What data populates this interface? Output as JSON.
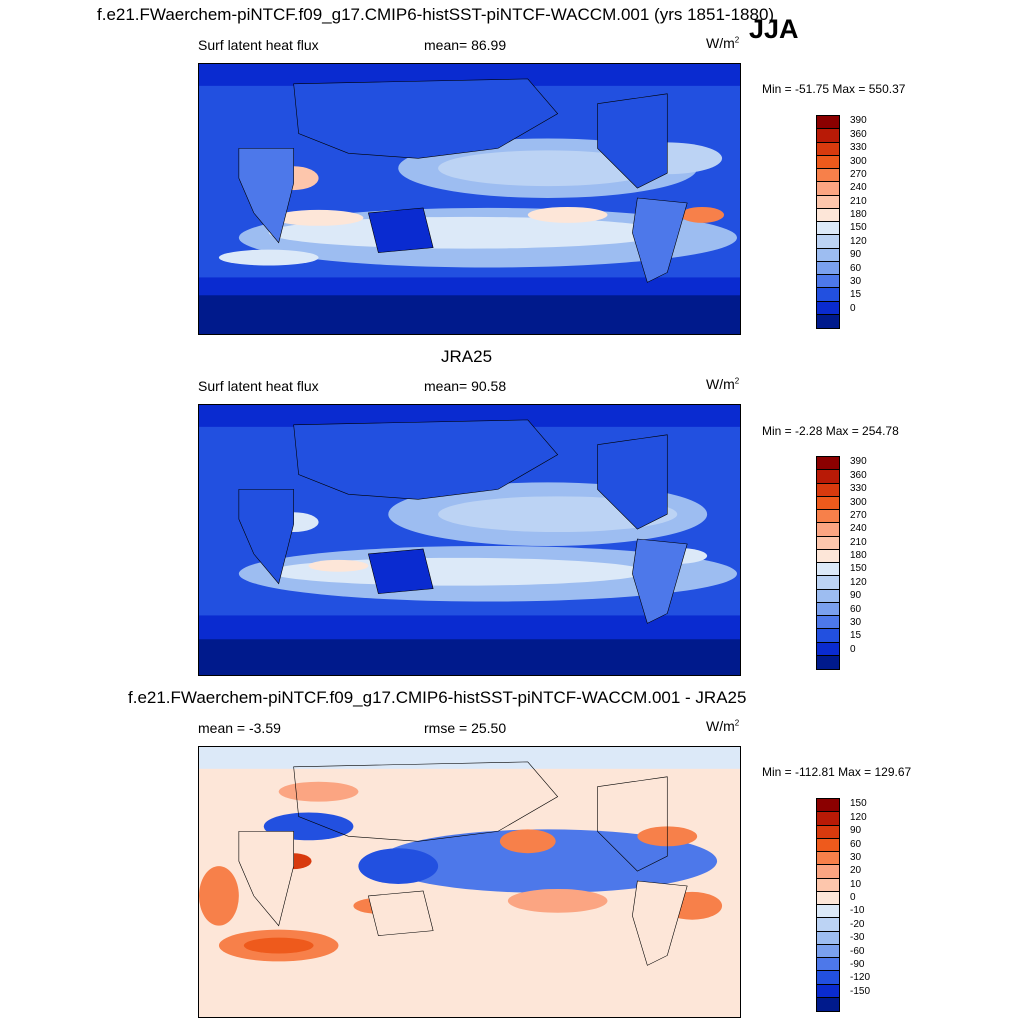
{
  "season": "JJA",
  "panels": [
    {
      "title": "f.e21.FWaerchem-piNTCF.f09_g17.CMIP6-histSST-piNTCF-WACCM.001 (yrs 1851-1880)",
      "left_label": "Surf latent heat flux",
      "center_label": "mean=  86.99",
      "units_base": "W/m",
      "units_exp": "2",
      "minmax": "Min = -51.75 Max = 550.37",
      "levels": [
        "390",
        "360",
        "330",
        "300",
        "270",
        "240",
        "210",
        "180",
        "150",
        "120",
        "90",
        "60",
        "30",
        "15",
        "0"
      ],
      "colors": [
        "#8b0000",
        "#b81a06",
        "#d83a0e",
        "#ee5a1c",
        "#f7804a",
        "#fba582",
        "#fdc6ac",
        "#fde6d8",
        "#dce9f8",
        "#bcd3f4",
        "#9dbdf1",
        "#7aa0ee",
        "#4d78ea",
        "#2250e0",
        "#0a2bd0",
        "#001a8c"
      ]
    },
    {
      "title": "JRA25",
      "left_label": "Surf latent heat flux",
      "center_label": "mean=  90.58",
      "units_base": "W/m",
      "units_exp": "2",
      "minmax": "Min =  -2.28 Max = 254.78",
      "levels": [
        "390",
        "360",
        "330",
        "300",
        "270",
        "240",
        "210",
        "180",
        "150",
        "120",
        "90",
        "60",
        "30",
        "15",
        "0"
      ],
      "colors": [
        "#8b0000",
        "#b81a06",
        "#d83a0e",
        "#ee5a1c",
        "#f7804a",
        "#fba582",
        "#fdc6ac",
        "#fde6d8",
        "#dce9f8",
        "#bcd3f4",
        "#9dbdf1",
        "#7aa0ee",
        "#4d78ea",
        "#2250e0",
        "#0a2bd0",
        "#001a8c"
      ]
    },
    {
      "title": "f.e21.FWaerchem-piNTCF.f09_g17.CMIP6-histSST-piNTCF-WACCM.001 - JRA25",
      "left_label": "mean =  -3.59",
      "center_label": "rmse =  25.50",
      "units_base": "W/m",
      "units_exp": "2",
      "minmax": "Min = -112.81 Max = 129.67",
      "levels": [
        "150",
        "120",
        "90",
        "60",
        "30",
        "20",
        "10",
        "0",
        "-10",
        "-20",
        "-30",
        "-60",
        "-90",
        "-120",
        "-150"
      ],
      "colors": [
        "#8b0000",
        "#b81a06",
        "#d83a0e",
        "#ee5a1c",
        "#f7804a",
        "#fba582",
        "#fdc6ac",
        "#fde6d8",
        "#dce9f8",
        "#bcd3f4",
        "#9dbdf1",
        "#7aa0ee",
        "#4d78ea",
        "#2250e0",
        "#0a2bd0",
        "#001a8c"
      ]
    }
  ]
}
